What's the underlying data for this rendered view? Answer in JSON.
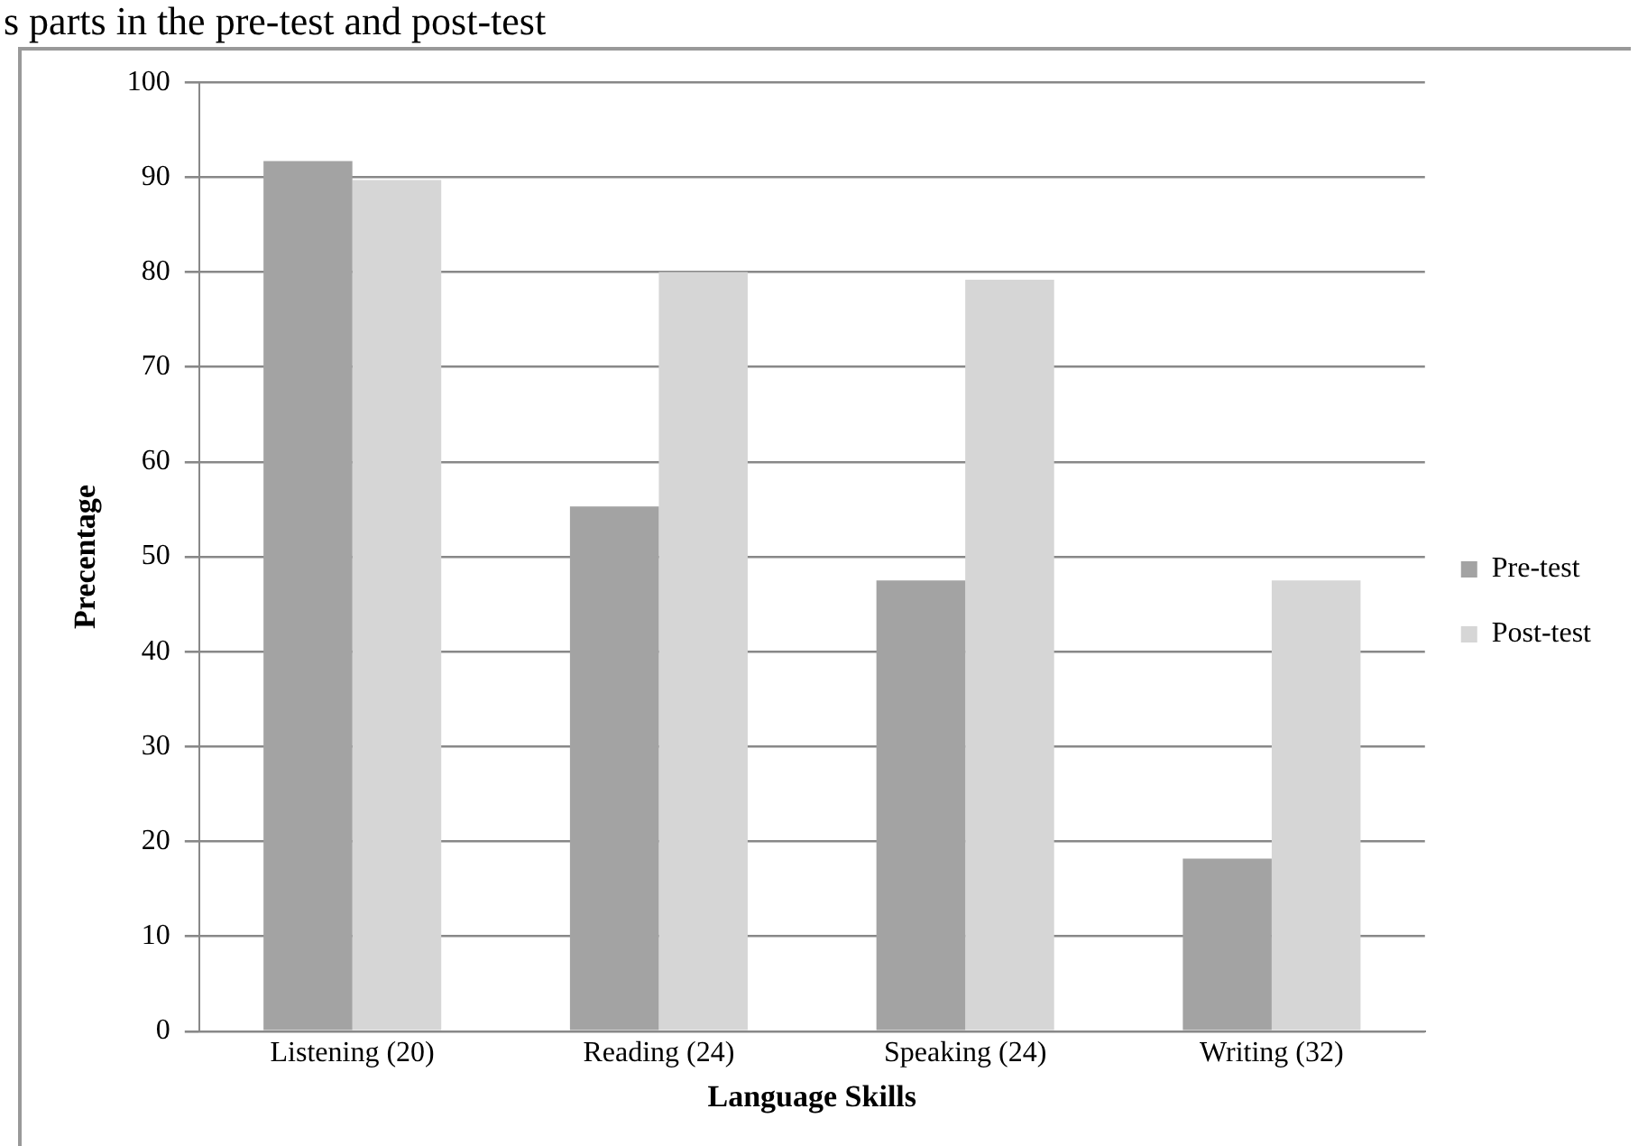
{
  "chart_data": {
    "type": "bar",
    "title": "s parts in the pre-test and post-test",
    "xlabel": "Language Skills",
    "ylabel": "Precentage",
    "categories": [
      "Listening (20)",
      "Reading (24)",
      "Speaking (24)",
      "Writing (32)"
    ],
    "series": [
      {
        "name": "Pre-test",
        "color": "#a3a3a3",
        "values": [
          91.7,
          55.3,
          47.5,
          18.2
        ]
      },
      {
        "name": "Post-test",
        "color": "#d6d6d6",
        "values": [
          89.7,
          80,
          79.2,
          47.5
        ]
      }
    ],
    "ylim": [
      0,
      100
    ],
    "yticks": [
      0,
      10,
      20,
      30,
      40,
      50,
      60,
      70,
      80,
      90,
      100
    ],
    "grid": "y",
    "legend": "right"
  }
}
